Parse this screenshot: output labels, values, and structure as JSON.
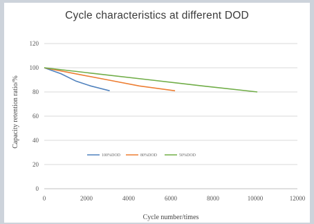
{
  "chart_data": {
    "type": "line",
    "title": "Cycle  characteristics at different   DOD",
    "xlabel": "Cycle number/times",
    "ylabel": "Capacity retention ratio/%",
    "xlim": [
      0,
      12000
    ],
    "ylim": [
      0,
      120
    ],
    "xticks": [
      0,
      2000,
      4000,
      6000,
      8000,
      10000,
      12000
    ],
    "yticks": [
      0,
      20,
      40,
      60,
      80,
      100,
      120
    ],
    "grid": true,
    "legend_position": "center",
    "series": [
      {
        "name": "100%DOD",
        "color": "#4f81bd",
        "x": [
          0,
          800,
          1500,
          2200,
          3100
        ],
        "y": [
          100,
          95,
          89,
          85,
          81
        ]
      },
      {
        "name": "80%DOD",
        "color": "#ed7d31",
        "x": [
          0,
          1500,
          3000,
          4500,
          6200
        ],
        "y": [
          100,
          95,
          90,
          85,
          81
        ]
      },
      {
        "name": "50%DOD",
        "color": "#70ad47",
        "x": [
          0,
          2500,
          5000,
          7500,
          10100
        ],
        "y": [
          100,
          95,
          90,
          85,
          80
        ]
      }
    ]
  }
}
